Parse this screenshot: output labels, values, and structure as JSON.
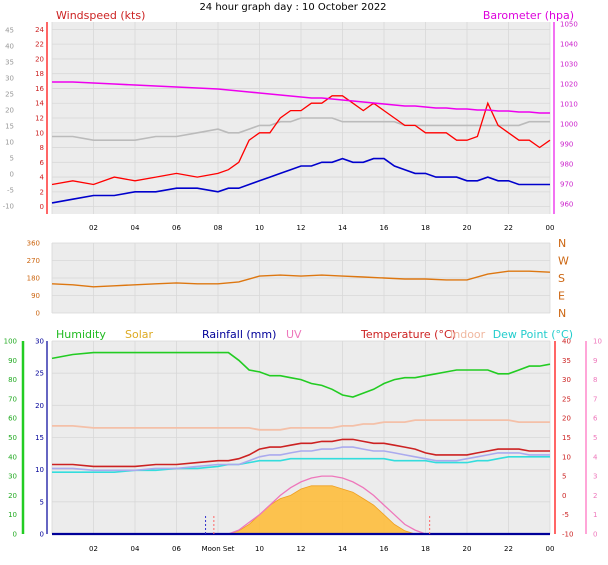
{
  "title": "24 hour graph day : 10 October 2022",
  "colors": {
    "wind": "#ff0000",
    "avg_wind": "#0000cc",
    "gust_avg": "#bbbbbb",
    "baro": "#ee00ee",
    "direction": "#dd7711",
    "humidity": "#22cc22",
    "solar": "#ffbb33",
    "rain": "#000099",
    "uv": "#ee77bb",
    "temperature": "#cc2222",
    "indoor": "#f4c0a8",
    "dew": "#33dddd",
    "feels": "#aaaaee",
    "panel_bg": "#ececec"
  },
  "chart_data": [
    {
      "type": "line",
      "panel": "wind-baro",
      "title": "24 hour graph day : 10 October 2022",
      "left_label": "Windspeed (kts)",
      "right_label": "Barometer (hpa)",
      "x_ticks": [
        "02",
        "04",
        "06",
        "08",
        "10",
        "12",
        "14",
        "16",
        "18",
        "20",
        "22",
        "00"
      ],
      "x_tick_hours": [
        2,
        4,
        6,
        8,
        10,
        12,
        14,
        16,
        18,
        20,
        22,
        24
      ],
      "x_range": [
        0,
        24
      ],
      "grid": true,
      "y_left": {
        "range": [
          -1,
          25
        ],
        "ticks": [
          0,
          2,
          4,
          6,
          8,
          10,
          12,
          14,
          16,
          18,
          20,
          22,
          24
        ]
      },
      "y_right": {
        "range": [
          955,
          1051
        ],
        "ticks": [
          960,
          970,
          980,
          990,
          1000,
          1010,
          1020,
          1030,
          1040,
          1050
        ]
      },
      "y_outer": {
        "range": [
          -12.5,
          47.5
        ],
        "ticks": [
          -10,
          -5,
          0,
          5,
          10,
          15,
          20,
          25,
          30,
          35,
          40,
          45
        ]
      },
      "hours": [
        0,
        1,
        2,
        3,
        4,
        5,
        6,
        7,
        8,
        8.5,
        9,
        9.5,
        10,
        10.5,
        11,
        11.5,
        12,
        12.5,
        13,
        13.5,
        14,
        14.5,
        15,
        15.5,
        16,
        16.5,
        17,
        17.5,
        18,
        18.5,
        19,
        19.5,
        20,
        20.5,
        21,
        21.5,
        22,
        22.5,
        23,
        23.5,
        24
      ],
      "series": [
        {
          "name": "gust",
          "axis": "left",
          "values": [
            3,
            3.5,
            3,
            4,
            3.5,
            4,
            4.5,
            4,
            4.5,
            5,
            6,
            9,
            10,
            10,
            12,
            13,
            13,
            14,
            14,
            15,
            15,
            14,
            13,
            14,
            13,
            12,
            11,
            11,
            10,
            10,
            10,
            9,
            9,
            9.5,
            14,
            11,
            10,
            9,
            9,
            8,
            9
          ]
        },
        {
          "name": "avg_wind",
          "axis": "left",
          "values": [
            0.5,
            1,
            1.5,
            1.5,
            2,
            2,
            2.5,
            2.5,
            2,
            2.5,
            2.5,
            3,
            3.5,
            4,
            4.5,
            5,
            5.5,
            5.5,
            6,
            6,
            6.5,
            6,
            6,
            6.5,
            6.5,
            5.5,
            5,
            4.5,
            4.5,
            4,
            4,
            4,
            3.5,
            3.5,
            4,
            3.5,
            3.5,
            3,
            3,
            3,
            3
          ]
        },
        {
          "name": "gust_avg",
          "axis": "left",
          "values": [
            9.5,
            9.5,
            9,
            9,
            9,
            9.5,
            9.5,
            10,
            10.5,
            10,
            10,
            10.5,
            11,
            11,
            11.5,
            11.5,
            12,
            12,
            12,
            12,
            11.5,
            11.5,
            11.5,
            11.5,
            11.5,
            11.5,
            11,
            11,
            11,
            11,
            11,
            11,
            11,
            11,
            11,
            11,
            11,
            11,
            11.5,
            11.5,
            11.5
          ]
        },
        {
          "name": "barometer",
          "axis": "right",
          "values": [
            1021,
            1021,
            1020.5,
            1020,
            1019.5,
            1019,
            1018.5,
            1018,
            1017.5,
            1017,
            1016.5,
            1016,
            1015.5,
            1015,
            1014.5,
            1014,
            1013.5,
            1013,
            1013,
            1012.5,
            1012,
            1011.5,
            1011,
            1010.5,
            1010,
            1009.5,
            1009,
            1009,
            1008.5,
            1008,
            1008,
            1007.5,
            1007.5,
            1007,
            1007,
            1006.5,
            1006.5,
            1006,
            1006,
            1005.5,
            1005.5
          ]
        }
      ]
    },
    {
      "type": "line",
      "panel": "wind-direction",
      "x_range": [
        0,
        24
      ],
      "grid": true,
      "y_left": {
        "range": [
          0,
          360
        ],
        "ticks": [
          0,
          90,
          180,
          270,
          360
        ],
        "tick_labels": [
          "0",
          "90",
          "180",
          "270",
          "360"
        ]
      },
      "y_right_labels": [
        "N",
        "E",
        "S",
        "W",
        "N"
      ],
      "hours": [
        0,
        1,
        2,
        3,
        4,
        5,
        6,
        7,
        8,
        9,
        10,
        11,
        12,
        13,
        14,
        15,
        16,
        17,
        18,
        19,
        20,
        21,
        22,
        23,
        24
      ],
      "series": [
        {
          "name": "direction",
          "values": [
            150,
            145,
            135,
            140,
            145,
            150,
            155,
            150,
            150,
            160,
            190,
            195,
            190,
            195,
            190,
            185,
            180,
            175,
            175,
            170,
            170,
            200,
            215,
            215,
            210
          ]
        }
      ]
    },
    {
      "type": "line",
      "panel": "temperature-humidity",
      "legend": [
        "Humidity",
        "Solar",
        "Rainfall (mm)",
        "UV",
        "Temperature (°C)",
        "Indoor",
        "Dew Point (°C)"
      ],
      "x_ticks": [
        "02",
        "04",
        "06",
        "Moon Set",
        "10",
        "12",
        "14",
        "16",
        "18",
        "20",
        "22",
        "00"
      ],
      "x_tick_hours": [
        2,
        4,
        6,
        8,
        10,
        12,
        14,
        16,
        18,
        20,
        22,
        24
      ],
      "x_range": [
        0,
        24
      ],
      "grid": true,
      "y_humidity": {
        "range": [
          0,
          100
        ],
        "ticks": [
          0,
          10,
          20,
          30,
          40,
          50,
          60,
          70,
          80,
          90,
          100
        ]
      },
      "y_rain": {
        "range": [
          0,
          30
        ],
        "ticks": [
          0,
          5,
          10,
          15,
          20,
          25,
          30
        ]
      },
      "y_temp": {
        "range": [
          -10,
          40
        ],
        "ticks": [
          -10,
          -5,
          0,
          5,
          10,
          15,
          20,
          25,
          30,
          35,
          40
        ]
      },
      "y_uv": {
        "range": [
          0,
          10
        ],
        "ticks": [
          0,
          1,
          2,
          3,
          4,
          5,
          6,
          7,
          8,
          9,
          10
        ]
      },
      "hours": [
        0,
        1,
        2,
        3,
        4,
        5,
        6,
        7,
        8,
        8.5,
        9,
        9.5,
        10,
        10.5,
        11,
        11.5,
        12,
        12.5,
        13,
        13.5,
        14,
        14.5,
        15,
        15.5,
        16,
        16.5,
        17,
        17.5,
        18,
        18.5,
        19,
        19.5,
        20,
        20.5,
        21,
        21.5,
        22,
        22.5,
        23,
        23.5,
        24
      ],
      "series": [
        {
          "name": "humidity",
          "axis": "humidity",
          "values": [
            91,
            93,
            94,
            94,
            94,
            94,
            94,
            94,
            94,
            94,
            90,
            85,
            84,
            82,
            82,
            81,
            80,
            78,
            77,
            75,
            72,
            71,
            73,
            75,
            78,
            80,
            81,
            81,
            82,
            83,
            84,
            85,
            85,
            85,
            85,
            83,
            83,
            85,
            87,
            87,
            88
          ]
        },
        {
          "name": "temperature",
          "axis": "temp",
          "values": [
            8,
            8,
            7.5,
            7.5,
            7.5,
            8,
            8,
            8.5,
            9,
            9,
            9.5,
            10.5,
            12,
            12.5,
            12.5,
            13,
            13.5,
            13.5,
            14,
            14,
            14.5,
            14.5,
            14,
            13.5,
            13.5,
            13,
            12.5,
            12,
            11,
            10.5,
            10.5,
            10.5,
            10.5,
            11,
            11.5,
            12,
            12,
            12,
            11.5,
            11.5,
            11.5
          ]
        },
        {
          "name": "indoor",
          "axis": "temp",
          "values": [
            18,
            18,
            17.5,
            17.5,
            17.5,
            17.5,
            17.5,
            17.5,
            17.5,
            17.5,
            17.5,
            17.5,
            17,
            17,
            17,
            17.5,
            17.5,
            17.5,
            17.5,
            17.5,
            18,
            18,
            18.5,
            18.5,
            19,
            19,
            19,
            19.5,
            19.5,
            19.5,
            19.5,
            19.5,
            19.5,
            19.5,
            19.5,
            19.5,
            19.5,
            19,
            19,
            19,
            19
          ]
        },
        {
          "name": "feels_like",
          "axis": "temp",
          "values": [
            7,
            7,
            6.5,
            6.5,
            6.5,
            7,
            7,
            7.5,
            8,
            8,
            8,
            9,
            10,
            10.5,
            10.5,
            11,
            11.5,
            11.5,
            12,
            12,
            12.5,
            12.5,
            12,
            11.5,
            11.5,
            11,
            10.5,
            10,
            9.5,
            9,
            9,
            9,
            9.5,
            10,
            10.5,
            11,
            11,
            11,
            10.5,
            10.5,
            10.5
          ]
        },
        {
          "name": "dew_point",
          "axis": "temp",
          "values": [
            6,
            6,
            6,
            6,
            6.5,
            6.5,
            7,
            7,
            7.5,
            8,
            8,
            8.5,
            9,
            9,
            9,
            9.5,
            9.5,
            9.5,
            9.5,
            9.5,
            9.5,
            9.5,
            9.5,
            9.5,
            9.5,
            9,
            9,
            9,
            9,
            8.5,
            8.5,
            8.5,
            8.5,
            9,
            9,
            9.5,
            10,
            10,
            10,
            10,
            10
          ]
        },
        {
          "name": "solar",
          "axis": "rain",
          "values": [
            0,
            0,
            0,
            0,
            0,
            0,
            0,
            0,
            0,
            0,
            0.5,
            1.5,
            3,
            4.5,
            5.5,
            6,
            7,
            7.5,
            7.5,
            7.5,
            7,
            6.5,
            5.5,
            4.5,
            3,
            1.5,
            0.5,
            0,
            0,
            0,
            0,
            0,
            0,
            0,
            0,
            0,
            0,
            0,
            0,
            0,
            0
          ]
        },
        {
          "name": "uv",
          "axis": "uv",
          "values": [
            0,
            0,
            0,
            0,
            0,
            0,
            0,
            0,
            0,
            0,
            0.2,
            0.6,
            1,
            1.5,
            2,
            2.4,
            2.7,
            2.9,
            3,
            3,
            2.9,
            2.7,
            2.4,
            2,
            1.5,
            1,
            0.5,
            0.2,
            0,
            0,
            0,
            0,
            0,
            0,
            0,
            0,
            0,
            0,
            0,
            0,
            0
          ]
        },
        {
          "name": "rainfall",
          "axis": "rain",
          "values": [
            0,
            0,
            0,
            0,
            0,
            0,
            0,
            0,
            0,
            0,
            0,
            0,
            0,
            0,
            0,
            0,
            0,
            0,
            0,
            0,
            0,
            0,
            0,
            0,
            0,
            0,
            0,
            0,
            0,
            0,
            0,
            0,
            0,
            0,
            0,
            0,
            0,
            0,
            0,
            0,
            0
          ]
        }
      ],
      "markers": [
        {
          "name": "moon-set",
          "hour": 7.4
        },
        {
          "name": "sunrise",
          "hour": 7.8
        },
        {
          "name": "sunset",
          "hour": 18.2
        }
      ]
    }
  ]
}
